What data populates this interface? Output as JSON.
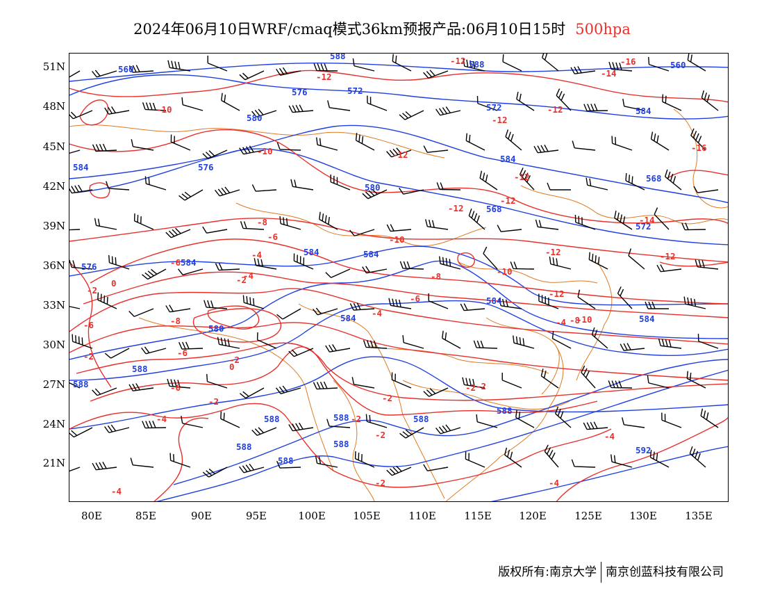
{
  "title": {
    "text": "2024年06月10日WRF/cmaq模式36km预报产品:06月10日15时",
    "level": "500hpa",
    "level_color": "#e8302b"
  },
  "axes": {
    "lat_labels": [
      "51N",
      "48N",
      "45N",
      "42N",
      "39N",
      "36N",
      "33N",
      "30N",
      "27N",
      "24N",
      "21N"
    ],
    "lon_labels": [
      "80E",
      "85E",
      "90E",
      "95E",
      "100E",
      "105E",
      "110E",
      "115E",
      "120E",
      "125E",
      "130E",
      "135E"
    ]
  },
  "colors": {
    "height_contour": "#1f3fe0",
    "temp_contour": "#e8302b",
    "boundary": "#e07a20",
    "wind_barb": "#000000"
  },
  "height_labels": [
    "588",
    "560",
    "588",
    "572",
    "576",
    "572",
    "584",
    "560",
    "580",
    "584",
    "576",
    "584",
    "580",
    "568",
    "568",
    "572",
    "584",
    "584",
    "584",
    "576",
    "584",
    "584",
    "580",
    "584",
    "588",
    "588",
    "588",
    "588",
    "588",
    "588",
    "588",
    "588",
    "592",
    "588"
  ],
  "temp_labels": [
    "-12",
    "-12",
    "-16",
    "-14",
    "-12",
    "-12",
    "-10",
    "-10",
    "-12",
    "-12",
    "-12",
    "-12",
    "-16",
    "-14",
    "-12",
    "-8",
    "-6",
    "-10",
    "-12",
    "-6",
    "-4",
    "-4",
    "-2",
    "-10",
    "-8",
    "-6",
    "-4",
    "-10",
    "-4",
    "-8",
    "-8",
    "-6",
    "-2",
    "0",
    "-2",
    "-2",
    "-2",
    "-2",
    "-2",
    "-4",
    "-2",
    "-2",
    "-2",
    "-4",
    "-4",
    "-4",
    "-6",
    "0",
    "-2",
    "-12",
    "-6"
  ],
  "footer": {
    "left": "版权所有:南京大学",
    "right": "南京创蓝科技有限公司"
  }
}
